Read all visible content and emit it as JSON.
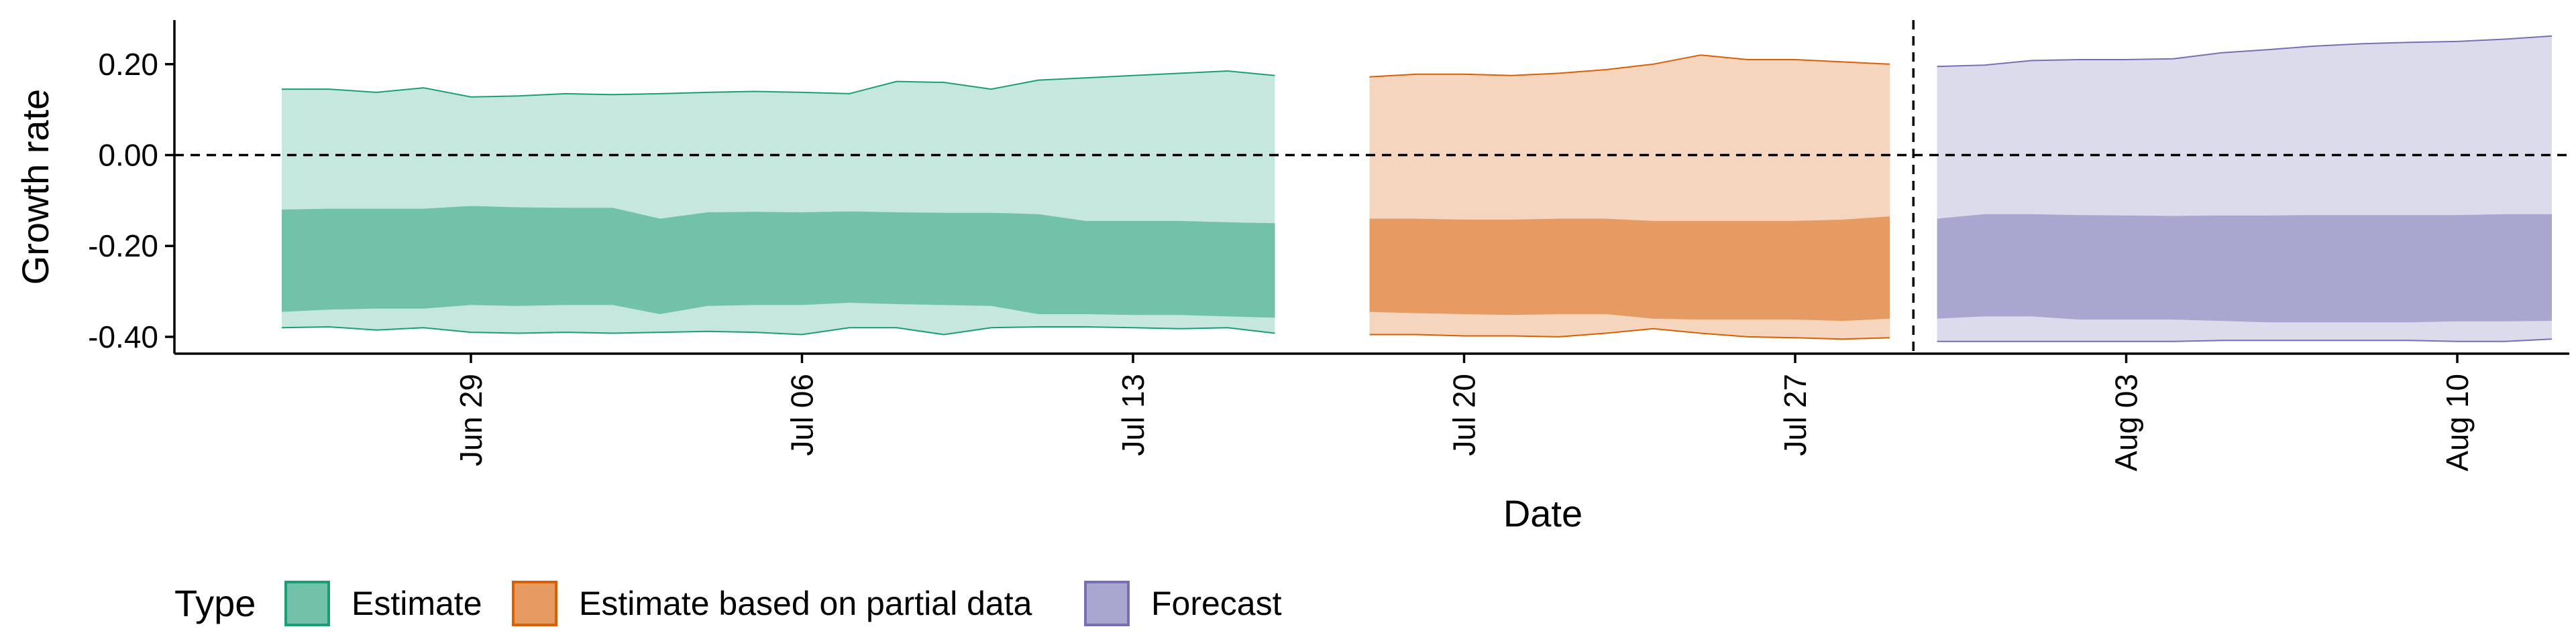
{
  "chart_data": {
    "type": "area",
    "title": "",
    "xlabel": "Date",
    "ylabel": "Growth rate",
    "x_start": "2020-06-24",
    "x_ticks": [
      "Jun 29",
      "Jul 06",
      "Jul 13",
      "Jul 20",
      "Jul 27",
      "Aug 03",
      "Aug 10"
    ],
    "y_ticks": [
      "0.20",
      "0.00",
      "-0.20",
      "-0.40"
    ],
    "y_tick_values": [
      0.2,
      0.0,
      -0.2,
      -0.4
    ],
    "ylim": [
      -0.437,
      0.297
    ],
    "reference_lines": [
      {
        "orientation": "horizontal",
        "value": 0.0,
        "style": "dashed"
      },
      {
        "orientation": "vertical",
        "date": "Jul 29",
        "style": "dashed"
      }
    ],
    "grid": false,
    "legend": {
      "title": "Type",
      "position": "bottom",
      "entries": [
        "Estimate",
        "Estimate based on partial data",
        "Forecast"
      ]
    },
    "series": [
      {
        "name": "Estimate",
        "color_outer": "#c5e7dd",
        "color_inner": "#72c2a9",
        "color_line": "#1b9e77",
        "x": [
          "Jun 25",
          "Jun 26",
          "Jun 27",
          "Jun 28",
          "Jun 29",
          "Jun 30",
          "Jul 01",
          "Jul 02",
          "Jul 03",
          "Jul 04",
          "Jul 05",
          "Jul 06",
          "Jul 07",
          "Jul 08",
          "Jul 09",
          "Jul 10",
          "Jul 11",
          "Jul 12",
          "Jul 13",
          "Jul 14",
          "Jul 15",
          "Jul 16"
        ],
        "upper_90": [
          0.145,
          0.145,
          0.138,
          0.148,
          0.128,
          0.13,
          0.135,
          0.133,
          0.135,
          0.138,
          0.14,
          0.138,
          0.135,
          0.162,
          0.16,
          0.145,
          0.165,
          0.17,
          0.175,
          0.18,
          0.185,
          0.175
        ],
        "upper_50": [
          -0.12,
          -0.118,
          -0.118,
          -0.118,
          -0.112,
          -0.115,
          -0.116,
          -0.116,
          -0.14,
          -0.126,
          -0.125,
          -0.126,
          -0.124,
          -0.126,
          -0.127,
          -0.127,
          -0.13,
          -0.145,
          -0.145,
          -0.145,
          -0.148,
          -0.15
        ],
        "lower_50": [
          -0.345,
          -0.34,
          -0.338,
          -0.338,
          -0.33,
          -0.332,
          -0.33,
          -0.33,
          -0.35,
          -0.332,
          -0.33,
          -0.33,
          -0.325,
          -0.328,
          -0.33,
          -0.332,
          -0.35,
          -0.35,
          -0.352,
          -0.352,
          -0.355,
          -0.358
        ],
        "lower_90": [
          -0.38,
          -0.378,
          -0.385,
          -0.38,
          -0.39,
          -0.392,
          -0.39,
          -0.392,
          -0.39,
          -0.388,
          -0.39,
          -0.395,
          -0.38,
          -0.38,
          -0.395,
          -0.38,
          -0.378,
          -0.378,
          -0.38,
          -0.382,
          -0.38,
          -0.392
        ]
      },
      {
        "name": "Estimate based on partial data",
        "color_outer": "#f5d5bd",
        "color_inner": "#e69b62",
        "color_line": "#d95f02",
        "x": [
          "Jul 18",
          "Jul 19",
          "Jul 20",
          "Jul 21",
          "Jul 22",
          "Jul 23",
          "Jul 24",
          "Jul 25",
          "Jul 26",
          "Jul 27",
          "Jul 28",
          "Jul 29"
        ],
        "upper_90": [
          0.172,
          0.178,
          0.178,
          0.175,
          0.18,
          0.188,
          0.2,
          0.22,
          0.21,
          0.21,
          0.205,
          0.2
        ],
        "upper_50": [
          -0.14,
          -0.14,
          -0.142,
          -0.142,
          -0.14,
          -0.14,
          -0.145,
          -0.145,
          -0.145,
          -0.145,
          -0.142,
          -0.135
        ],
        "lower_50": [
          -0.345,
          -0.348,
          -0.35,
          -0.352,
          -0.35,
          -0.35,
          -0.36,
          -0.362,
          -0.362,
          -0.362,
          -0.365,
          -0.36
        ],
        "lower_90": [
          -0.395,
          -0.395,
          -0.398,
          -0.398,
          -0.4,
          -0.392,
          -0.382,
          -0.392,
          -0.4,
          -0.402,
          -0.405,
          -0.402
        ]
      },
      {
        "name": "Forecast",
        "color_outer": "#dcdbeb",
        "color_inner": "#a9a6d0",
        "color_line": "#7570b3",
        "x": [
          "Jul 30",
          "Jul 31",
          "Aug 01",
          "Aug 02",
          "Aug 03",
          "Aug 04",
          "Aug 05",
          "Aug 06",
          "Aug 07",
          "Aug 08",
          "Aug 09",
          "Aug 10",
          "Aug 11",
          "Aug 12"
        ],
        "upper_90": [
          0.195,
          0.198,
          0.208,
          0.21,
          0.21,
          0.212,
          0.225,
          0.232,
          0.24,
          0.245,
          0.248,
          0.25,
          0.255,
          0.262
        ],
        "upper_50": [
          -0.14,
          -0.13,
          -0.13,
          -0.132,
          -0.133,
          -0.134,
          -0.133,
          -0.133,
          -0.132,
          -0.132,
          -0.132,
          -0.132,
          -0.13,
          -0.13
        ],
        "lower_50": [
          -0.36,
          -0.355,
          -0.355,
          -0.362,
          -0.362,
          -0.362,
          -0.365,
          -0.368,
          -0.368,
          -0.368,
          -0.368,
          -0.366,
          -0.366,
          -0.365
        ],
        "lower_90": [
          -0.41,
          -0.41,
          -0.41,
          -0.41,
          -0.41,
          -0.41,
          -0.408,
          -0.408,
          -0.408,
          -0.408,
          -0.408,
          -0.41,
          -0.41,
          -0.405
        ]
      }
    ]
  }
}
